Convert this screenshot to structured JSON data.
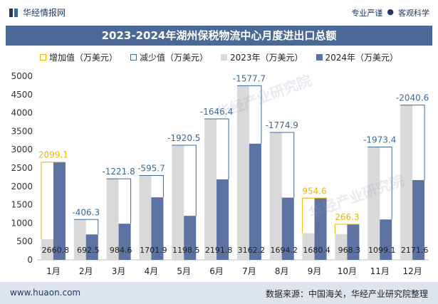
{
  "header": {
    "brand": "华经情报网",
    "tag1": "专业严谨",
    "tag2": "客观科学"
  },
  "legend": {
    "increase": "增加值（万美元）",
    "decrease": "减少值（万美元）",
    "y2023": "2023年（万美元）",
    "y2024": "2024年（万美元）"
  },
  "footer": {
    "website": "www.huaon.com",
    "source": "数据来源：中国海关，华经产业研究院整理"
  },
  "watermark": "华经产业研究院",
  "colors": {
    "bar2023": "#d9d9d9",
    "bar2024": "#5b72a3",
    "increase": "#f0b400",
    "decrease": "#3a6a99",
    "title_bg": "#4a6996"
  },
  "chart_data": {
    "type": "bar",
    "title": "2023-2024年湖州保税物流中心月度进出口总额",
    "categories": [
      "1月",
      "2月",
      "3月",
      "4月",
      "5月",
      "6月",
      "7月",
      "8月",
      "9月",
      "10月",
      "11月",
      "12月"
    ],
    "ylim": [
      0,
      5000
    ],
    "yticks": [
      0,
      500,
      1000,
      1500,
      2000,
      2500,
      3000,
      3500,
      4000,
      4500,
      5000
    ],
    "series": [
      {
        "name": "2023年（万美元）",
        "values": [
          561.7,
          1098.8,
          2206.4,
          2297.6,
          3119.0,
          3838.2,
          4739.9,
          3469.1,
          725.8,
          702.0,
          3072.5,
          4212.2
        ]
      },
      {
        "name": "2024年（万美元）",
        "values": [
          2660.8,
          692.5,
          984.6,
          1701.9,
          1198.5,
          2191.8,
          3162.2,
          1694.2,
          1680.4,
          968.3,
          1099.1,
          2171.6
        ]
      }
    ],
    "changes": [
      2099.1,
      -406.3,
      -1221.8,
      -595.7,
      -1920.5,
      -1646.4,
      -1577.7,
      -1774.9,
      954.6,
      266.3,
      -1973.4,
      -2040.6
    ],
    "change_labels": [
      "2099.1",
      "-406.3",
      "-1221.8",
      "-595.7",
      "-1920.5",
      "-1646.4",
      "-1577.7",
      "-1774.9",
      "954.6",
      "266.3",
      "-1973.4",
      "-2040.6"
    ],
    "value_labels": [
      "2660.8",
      "692.5",
      "984.6",
      "1701.9",
      "1198.5",
      "2191.8",
      "3162.2",
      "1694.2",
      "1680.4",
      "968.3",
      "1099.1",
      "2171.6"
    ]
  }
}
